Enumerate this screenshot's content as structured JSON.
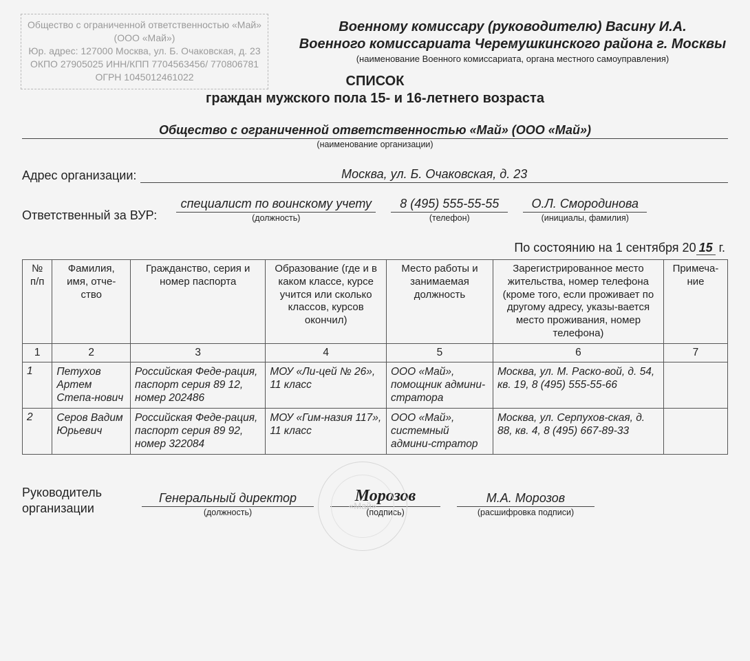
{
  "stamp": {
    "line1": "Общество с ограниченной ответственностью «Май»",
    "line2": "(ООО «Май»)",
    "line3": "Юр. адрес: 127000 Москва, ул. Б. Очаковская, д. 23",
    "line4": "ОКПО 27905025 ИНН/КПП 7704563456/ 770806781",
    "line5": "ОГРН 1045012461022"
  },
  "header": {
    "to1": "Военному комиссару (руководителю) Васину И.А.",
    "to2": "Военного комиссариата Черемушкинского района г. Москвы",
    "sub": "(наименование Военного комиссариата, органа местного самоуправления)"
  },
  "title": {
    "t1": "СПИСОК",
    "t2": "граждан мужского пола 15- и 16-летнего возраста"
  },
  "org": {
    "value": "Общество с ограниченной ответственностью «Май» (ООО «Май»)",
    "caption": "(наименование организации)"
  },
  "address": {
    "label": "Адрес организации:",
    "value": "Москва, ул. Б. Очаковская, д. 23"
  },
  "responsible": {
    "label": "Ответственный за ВУР:",
    "position": "специалист по воинскому учету",
    "position_cap": "(должность)",
    "phone": "8 (495) 555-55-55",
    "phone_cap": "(телефон)",
    "name": "О.Л. Смородинова",
    "name_cap": "(инициалы, фамилия)"
  },
  "state": {
    "prefix": "По состоянию на 1 сентября 20",
    "year_suffix": "15",
    "tail": "  г."
  },
  "table": {
    "headers": [
      "№ п/п",
      "Фамилия, имя, отче-ство",
      "Гражданство, серия и номер паспорта",
      "Образование (где и в каком классе, курсе учится или сколько классов, курсов окончил)",
      "Место работы и занимаемая должность",
      "Зарегистрированное место жительства, номер телефона (кроме того, если проживает по другому адресу, указы-вается место проживания, номер телефона)",
      "Примеча-ние"
    ],
    "numrow": [
      "1",
      "2",
      "3",
      "4",
      "5",
      "6",
      "7"
    ],
    "rows": [
      {
        "n": "1",
        "fio": "Петухов Артем Степа-нович",
        "pass": "Российская Феде-рация, паспорт серия 89 12, номер 202486",
        "edu": "МОУ «Ли-цей № 26», 11 класс",
        "job": "ООО «Май», помощник админи-стратора",
        "addr": "Москва, ул. М. Раско-вой, д. 54, кв. 19, 8 (495) 555-55-66",
        "note": ""
      },
      {
        "n": "2",
        "fio": "Серов Вадим Юрьевич",
        "pass": "Российская Феде-рация, паспорт серия 89 92, номер 322084",
        "edu": "МОУ «Гим-назия 117», 11 класс",
        "job": "ООО «Май», системный админи-стратор",
        "addr": "Москва, ул. Серпухов-ская, д. 88, кв. 4, 8 (495) 667-89-33",
        "note": ""
      }
    ]
  },
  "footer": {
    "left_line1": "Руководитель",
    "left_line2": "организации",
    "position": "Генеральный директор",
    "position_cap": "(должность)",
    "sign": "Морозов",
    "sign_cap": "(подпись)",
    "decoded": "М.А. Морозов",
    "decoded_cap": "(расшифровка подписи)",
    "stamp_center": "«Май»"
  },
  "colors": {
    "page_bg": "#f4f4f4",
    "text": "#222222",
    "stamp_border": "#b7b7b7",
    "stamp_text": "#9a9a9a",
    "line": "#444444",
    "table_border": "#555555",
    "round_stamp": "#d7d7d7"
  },
  "fonts": {
    "body_size_pt": 14,
    "header_size_pt": 15,
    "caption_size_pt": 10
  }
}
